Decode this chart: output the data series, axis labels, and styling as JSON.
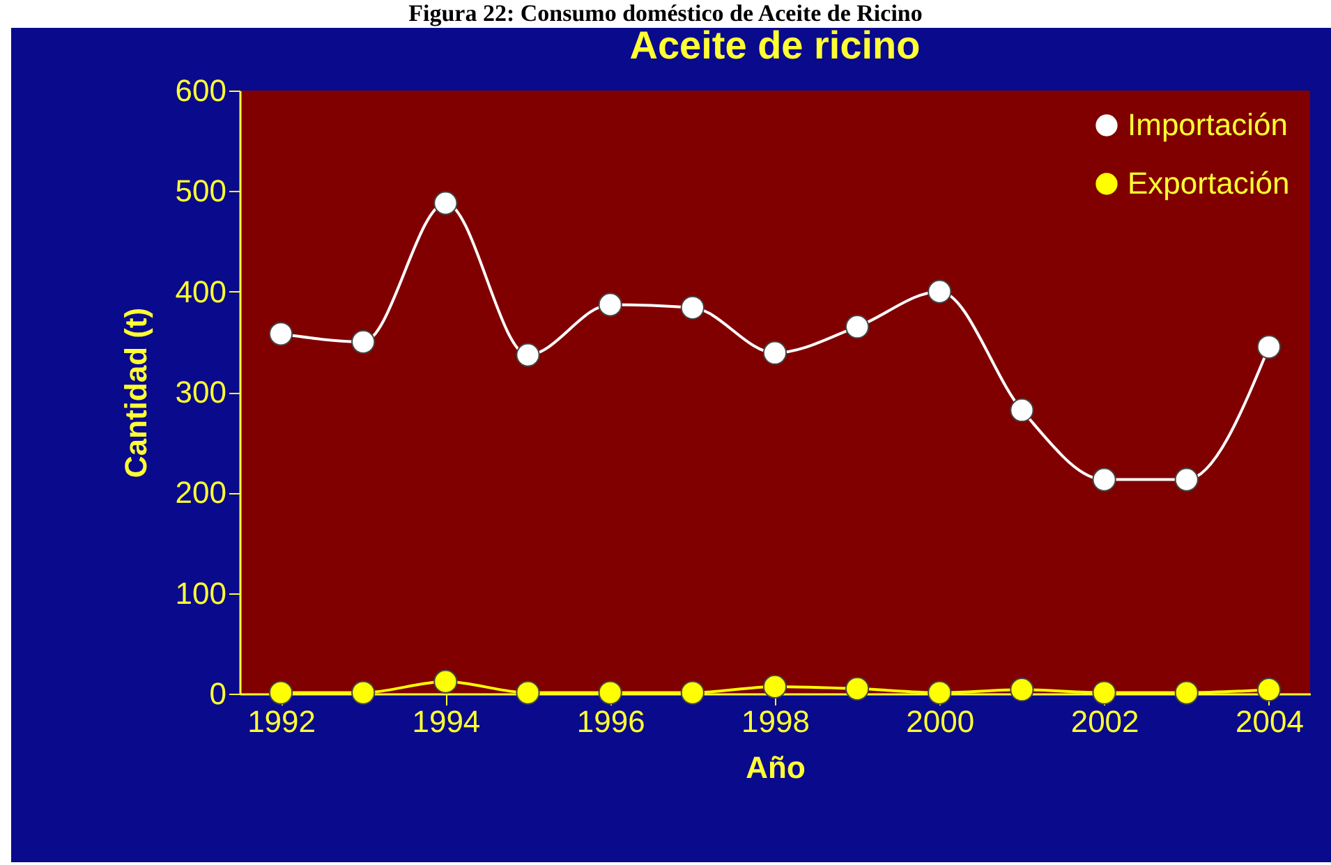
{
  "chart_data": {
    "type": "line",
    "title": "Aceite de ricino",
    "xlabel": "Año",
    "ylabel": "Cantidad (t)",
    "annotations": [
      "Figura 22: Consumo doméstico de Aceite de Ricino"
    ],
    "x": [
      1992,
      1993,
      1994,
      1995,
      1996,
      1997,
      1998,
      1999,
      2000,
      2001,
      2002,
      2003,
      2004
    ],
    "series": [
      {
        "name": "Importación",
        "color": "#ffffff",
        "values": [
          358,
          350,
          488,
          337,
          387,
          384,
          339,
          365,
          400,
          282,
          213,
          213,
          345
        ]
      },
      {
        "name": "Exportación",
        "color": "#ffff00",
        "values": [
          1,
          1,
          12,
          1,
          1,
          1,
          7,
          5,
          1,
          4,
          1,
          1,
          4
        ]
      }
    ],
    "xlim": [
      1991.5,
      2004.5
    ],
    "xticks": [
      1992,
      1994,
      1996,
      1998,
      2000,
      2002,
      2004
    ],
    "ylim": [
      0,
      600
    ],
    "yticks": [
      0,
      100,
      200,
      300,
      400,
      500,
      600
    ],
    "grid": false,
    "legend": "top right",
    "marker": "circle",
    "line_style": "solid"
  }
}
